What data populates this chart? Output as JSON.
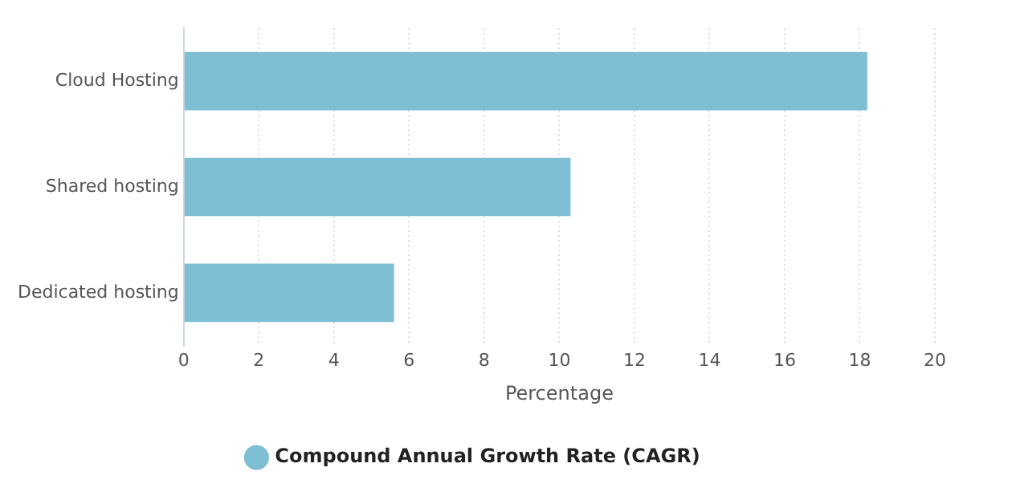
{
  "chart_data": {
    "type": "bar",
    "orientation": "horizontal",
    "categories": [
      "Cloud Hosting",
      "Shared hosting",
      "Dedicated hosting"
    ],
    "series": [
      {
        "name": "Compound Annual Growth Rate (CAGR)",
        "color": "#7fbfd4",
        "values": [
          18.2,
          10.3,
          5.6
        ]
      }
    ],
    "xlabel": "Percentage",
    "xlim": [
      0,
      20
    ],
    "xticks": [
      0,
      2,
      4,
      6,
      8,
      10,
      12,
      14,
      16,
      18,
      20
    ],
    "grid": "x",
    "legend": "bottom"
  }
}
